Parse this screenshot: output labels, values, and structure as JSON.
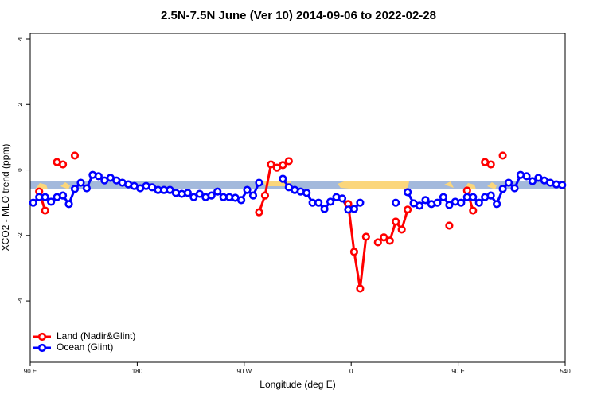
{
  "chart_data": {
    "type": "line",
    "title": "2.5N-7.5N June (Ver 10)   2014-09-06 to 2022-02-28",
    "x_label": "Longitude (deg E)",
    "y_label": "XCO2 - MLO trend (ppm)",
    "x": [
      92.5,
      97.5,
      102.5,
      107.5,
      112.5,
      117.5,
      122.5,
      127.5,
      132.5,
      137.5,
      142.5,
      147.5,
      152.5,
      157.5,
      162.5,
      167.5,
      172.5,
      177.5,
      182.5,
      187.5,
      192.5,
      197.5,
      202.5,
      207.5,
      212.5,
      217.5,
      222.5,
      227.5,
      232.5,
      237.5,
      242.5,
      247.5,
      252.5,
      257.5,
      262.5,
      267.5,
      272.5,
      277.5,
      282.5,
      287.5,
      292.5,
      297.5,
      302.5,
      307.5,
      312.5,
      317.5,
      322.5,
      327.5,
      332.5,
      337.5,
      342.5,
      347.5,
      352.5,
      357.5,
      362.5,
      367.5,
      372.5,
      377.5,
      382.5,
      387.5,
      392.5,
      397.5,
      402.5,
      407.5,
      412.5,
      417.5,
      422.5,
      427.5,
      432.5,
      437.5,
      442.5,
      447.5,
      452.5,
      457.5,
      462.5,
      467.5,
      472.5,
      477.5,
      482.5,
      487.5,
      492.5,
      497.5,
      502.5,
      507.5,
      512.5,
      517.5,
      522.5,
      527.5,
      532.5,
      537.5
    ],
    "series": [
      {
        "name": "Land (Nadir&Glint)",
        "color": "#ff0000",
        "values": [
          null,
          -0.66,
          -1.24,
          null,
          0.24,
          0.17,
          null,
          0.44,
          null,
          null,
          null,
          null,
          null,
          null,
          null,
          null,
          null,
          null,
          null,
          null,
          null,
          null,
          null,
          null,
          null,
          null,
          null,
          null,
          null,
          null,
          null,
          null,
          null,
          null,
          null,
          null,
          null,
          null,
          -1.29,
          -0.78,
          0.17,
          0.07,
          0.15,
          0.27,
          null,
          null,
          null,
          null,
          null,
          null,
          null,
          null,
          null,
          -1.04,
          -2.5,
          -3.62,
          -2.04,
          null,
          -2.21,
          -2.06,
          -2.16,
          -1.58,
          -1.82,
          -1.21,
          null,
          null,
          null,
          null,
          null,
          null,
          -1.7,
          null,
          null,
          -0.63,
          -1.24,
          null,
          0.24,
          0.17,
          null,
          0.44,
          null,
          null,
          null,
          null,
          null,
          null,
          null,
          null,
          null,
          null
        ]
      },
      {
        "name": "Ocean (Glint)",
        "color": "#0000ff",
        "values": [
          -1.0,
          -0.83,
          -0.83,
          -0.97,
          -0.83,
          -0.78,
          -1.04,
          -0.58,
          -0.39,
          -0.56,
          -0.15,
          -0.19,
          -0.32,
          -0.24,
          -0.32,
          -0.39,
          -0.44,
          -0.49,
          -0.56,
          -0.49,
          -0.53,
          -0.61,
          -0.61,
          -0.61,
          -0.7,
          -0.73,
          -0.7,
          -0.83,
          -0.73,
          -0.83,
          -0.78,
          -0.66,
          -0.83,
          -0.83,
          -0.85,
          -0.92,
          -0.61,
          -0.78,
          -0.39,
          null,
          null,
          null,
          -0.27,
          -0.53,
          -0.61,
          -0.66,
          -0.7,
          -1.0,
          -1.0,
          -1.19,
          -0.97,
          -0.83,
          -0.87,
          -1.21,
          -1.19,
          -1.0,
          null,
          null,
          null,
          null,
          null,
          -1.0,
          null,
          -0.68,
          -1.02,
          -1.09,
          -0.92,
          -1.04,
          -1.0,
          -0.83,
          -1.07,
          -0.97,
          -1.0,
          -0.83,
          -0.83,
          -1.0,
          -0.83,
          -0.78,
          -1.04,
          -0.58,
          -0.39,
          -0.56,
          -0.15,
          -0.19,
          -0.34,
          -0.24,
          -0.32,
          -0.39,
          -0.44,
          -0.46
        ]
      }
    ],
    "xlim": [
      90,
      540
    ],
    "xticks": [
      {
        "value": 90,
        "label": "90 E"
      },
      180,
      {
        "value": 270,
        "label": "90 W"
      },
      {
        "value": 360,
        "label": "0"
      },
      {
        "value": 450,
        "label": "90 E"
      },
      540
    ],
    "ylim": [
      -5.87,
      4.17
    ],
    "yticks": [
      4,
      2,
      0,
      -2,
      -4
    ],
    "legend": "bottomleft"
  }
}
